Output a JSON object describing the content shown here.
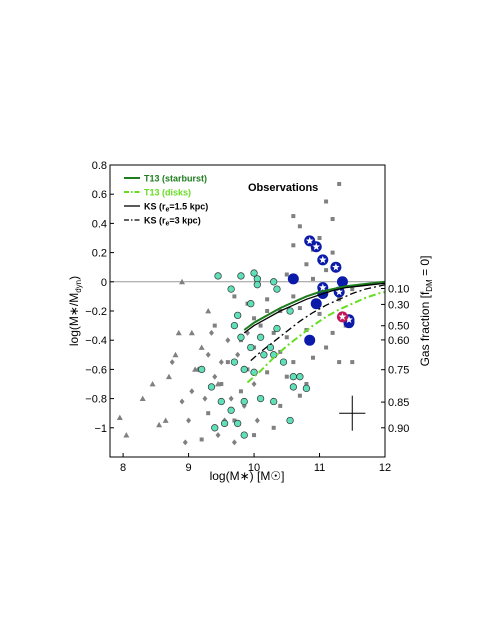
{
  "chart_data": {
    "type": "scatter",
    "title": "Observations",
    "xlabel": "log(M∗) [M☉]",
    "ylabel": "log(M∗/M",
    "ylabel_sub": "dyn",
    "ylabel_close": ")",
    "right_label": "Gas fraction [f",
    "right_label_sub": "DM",
    "right_label_tail": " = 0]",
    "xlim": [
      7.8,
      12
    ],
    "ylim": [
      -1.2,
      0.8
    ],
    "x_ticks": [
      8,
      9,
      10,
      11,
      12
    ],
    "y_ticks": [
      0.8,
      0.6,
      0.4,
      0.2,
      0,
      -0.2,
      -0.4,
      -0.6,
      -0.8,
      -1
    ],
    "y_tick_labels": [
      "0.8",
      "0.6",
      "0.4",
      "0.2",
      "0",
      "−0.2",
      "−0.4",
      "−0.6",
      "−0.8",
      "−1"
    ],
    "right_axis": [
      {
        "y": -0.046,
        "label": "0.10"
      },
      {
        "y": -0.155,
        "label": "0.30"
      },
      {
        "y": -0.301,
        "label": "0.50"
      },
      {
        "y": -0.398,
        "label": "0.60"
      },
      {
        "y": -0.602,
        "label": "0.75"
      },
      {
        "y": -0.824,
        "label": "0.85"
      },
      {
        "y": -1.0,
        "label": "0.90"
      }
    ],
    "grid": false,
    "reference_line": {
      "y": 0,
      "color": "#999999"
    },
    "legend": {
      "position": "top-left",
      "entries": [
        {
          "label": "T13 (starburst)",
          "style": "solid",
          "color": "#1e7d1e",
          "text_color": "#1e7d1e",
          "sub": ""
        },
        {
          "label": "T13 (disks)",
          "style": "dashdot",
          "color": "#66dd22",
          "text_color": "#66dd22",
          "sub": ""
        },
        {
          "label_pre": "KS (r",
          "sub": "e",
          "label_post": "=1.5 kpc)",
          "style": "solid",
          "color": "#000000",
          "text_color": "#000000"
        },
        {
          "label_pre": "KS (r",
          "sub": "e",
          "label_post": "=3 kpc)",
          "style": "dashdot",
          "color": "#000000",
          "text_color": "#000000"
        }
      ]
    },
    "series": [
      {
        "name": "T13 (starburst)",
        "kind": "curve",
        "color": "#1e7d1e",
        "style": "solid",
        "x": [
          9.85,
          10.0,
          10.2,
          10.4,
          10.6,
          10.8,
          11.0,
          11.2,
          11.4,
          11.6,
          11.8,
          12.0
        ],
        "y": [
          -0.33,
          -0.28,
          -0.23,
          -0.18,
          -0.14,
          -0.1,
          -0.07,
          -0.05,
          -0.03,
          -0.02,
          -0.01,
          0.0
        ]
      },
      {
        "name": "KS (re=1.5 kpc)",
        "kind": "curve",
        "color": "#000000",
        "style": "solid",
        "x": [
          9.85,
          10.0,
          10.2,
          10.4,
          10.6,
          10.8,
          11.0,
          11.2,
          11.4,
          11.6,
          11.8,
          12.0
        ],
        "y": [
          -0.35,
          -0.3,
          -0.25,
          -0.2,
          -0.16,
          -0.12,
          -0.09,
          -0.06,
          -0.04,
          -0.03,
          -0.02,
          -0.01
        ]
      },
      {
        "name": "KS (re=3 kpc)",
        "kind": "curve",
        "color": "#000000",
        "style": "dashdot",
        "x": [
          9.95,
          10.1,
          10.3,
          10.5,
          10.7,
          10.9,
          11.1,
          11.3,
          11.5,
          11.7,
          11.9,
          12.0
        ],
        "y": [
          -0.54,
          -0.48,
          -0.41,
          -0.34,
          -0.27,
          -0.21,
          -0.16,
          -0.12,
          -0.08,
          -0.05,
          -0.03,
          -0.02
        ]
      },
      {
        "name": "T13 (disks)",
        "kind": "curve",
        "color": "#66dd22",
        "style": "dashdot",
        "x": [
          9.9,
          10.1,
          10.3,
          10.5,
          10.7,
          10.9,
          11.1,
          11.3,
          11.5,
          11.7,
          11.9,
          12.0
        ],
        "y": [
          -0.69,
          -0.61,
          -0.52,
          -0.44,
          -0.37,
          -0.3,
          -0.24,
          -0.19,
          -0.15,
          -0.11,
          -0.08,
          -0.07
        ]
      },
      {
        "name": "gray squares",
        "kind": "marker",
        "marker": "square",
        "color": "#808080",
        "points": [
          [
            11.3,
            0.67
          ],
          [
            11.1,
            0.55
          ],
          [
            10.6,
            0.45
          ],
          [
            11.2,
            0.43
          ],
          [
            10.7,
            0.38
          ],
          [
            11.0,
            0.3
          ],
          [
            10.6,
            0.25
          ],
          [
            10.9,
            0.22
          ],
          [
            11.2,
            0.2
          ],
          [
            10.8,
            0.12
          ],
          [
            11.1,
            0.08
          ],
          [
            10.5,
            0.05
          ],
          [
            10.9,
            0.02
          ],
          [
            9.7,
            -0.1
          ],
          [
            9.9,
            -0.15
          ],
          [
            10.2,
            -0.12
          ],
          [
            10.4,
            -0.2
          ],
          [
            10.7,
            -0.18
          ],
          [
            11.0,
            -0.22
          ],
          [
            11.3,
            -0.12
          ],
          [
            11.5,
            -0.05
          ],
          [
            10.1,
            -0.3
          ],
          [
            10.3,
            -0.35
          ],
          [
            10.5,
            -0.38
          ],
          [
            10.8,
            -0.33
          ],
          [
            11.2,
            -0.35
          ],
          [
            9.8,
            -0.4
          ],
          [
            10.0,
            -0.45
          ],
          [
            10.4,
            -0.48
          ],
          [
            10.6,
            -0.55
          ],
          [
            10.9,
            -0.52
          ],
          [
            11.1,
            -0.45
          ],
          [
            9.6,
            -0.55
          ],
          [
            9.9,
            -0.6
          ],
          [
            10.2,
            -0.62
          ],
          [
            10.5,
            -0.65
          ],
          [
            10.8,
            -0.7
          ],
          [
            11.3,
            -0.55
          ],
          [
            9.5,
            -0.7
          ],
          [
            9.8,
            -0.75
          ],
          [
            10.1,
            -0.8
          ],
          [
            10.4,
            -0.85
          ],
          [
            10.7,
            -0.78
          ],
          [
            9.3,
            -0.9
          ],
          [
            9.7,
            -0.95
          ],
          [
            10.0,
            -1.05
          ],
          [
            10.3,
            -1.0
          ],
          [
            9.2,
            -1.08
          ],
          [
            11.4,
            -0.3
          ],
          [
            10.2,
            -0.2
          ],
          [
            10.6,
            -0.1
          ],
          [
            9.4,
            -0.3
          ],
          [
            10.0,
            -0.25
          ],
          [
            11.5,
            -0.55
          ]
        ]
      },
      {
        "name": "gray triangles",
        "kind": "marker",
        "marker": "triangle",
        "color": "#808080",
        "points": [
          [
            7.95,
            -0.93
          ],
          [
            8.05,
            -1.05
          ],
          [
            8.3,
            -0.8
          ],
          [
            8.45,
            -0.7
          ],
          [
            8.55,
            -0.98
          ],
          [
            8.65,
            -0.95
          ],
          [
            8.8,
            -0.5
          ],
          [
            8.85,
            -0.35
          ],
          [
            8.9,
            0.0
          ],
          [
            9.05,
            -0.35
          ],
          [
            9.1,
            -0.6
          ],
          [
            9.2,
            -0.45
          ],
          [
            9.3,
            -0.2
          ],
          [
            9.45,
            -0.7
          ],
          [
            8.7,
            -0.65
          ]
        ]
      },
      {
        "name": "gray diamonds",
        "kind": "marker",
        "marker": "diamond",
        "color": "#808080",
        "points": [
          [
            8.75,
            -0.55
          ],
          [
            8.9,
            -0.82
          ],
          [
            9.0,
            -0.95
          ],
          [
            9.05,
            -0.75
          ],
          [
            9.15,
            -0.6
          ],
          [
            9.25,
            -0.8
          ],
          [
            9.3,
            -0.5
          ],
          [
            9.4,
            -0.65
          ],
          [
            9.5,
            -0.55
          ],
          [
            9.55,
            -0.95
          ],
          [
            9.6,
            -0.4
          ],
          [
            9.65,
            -0.8
          ],
          [
            9.7,
            -1.1
          ],
          [
            9.75,
            -0.5
          ],
          [
            9.85,
            -0.85
          ],
          [
            9.9,
            -0.35
          ],
          [
            10.0,
            -0.7
          ],
          [
            10.05,
            -0.95
          ],
          [
            8.95,
            -1.1
          ],
          [
            9.35,
            -0.35
          ],
          [
            9.45,
            -1.05
          ]
        ]
      },
      {
        "name": "cyan circles",
        "kind": "marker",
        "marker": "circle",
        "color": "#5fe0b8",
        "stroke": "#333333",
        "points": [
          [
            9.45,
            0.04
          ],
          [
            9.8,
            0.04
          ],
          [
            10.0,
            0.06
          ],
          [
            10.05,
            0.02
          ],
          [
            10.3,
            0.0
          ],
          [
            10.35,
            -0.05
          ],
          [
            9.7,
            -0.3
          ],
          [
            9.8,
            -0.38
          ],
          [
            9.95,
            -0.45
          ],
          [
            10.1,
            -0.38
          ],
          [
            10.25,
            -0.45
          ],
          [
            9.7,
            -0.55
          ],
          [
            9.85,
            -0.6
          ],
          [
            10.0,
            -0.62
          ],
          [
            10.15,
            -0.5
          ],
          [
            10.3,
            -0.5
          ],
          [
            10.45,
            -0.55
          ],
          [
            10.6,
            -0.65
          ],
          [
            10.7,
            -0.65
          ],
          [
            10.8,
            -0.73
          ],
          [
            9.2,
            -0.6
          ],
          [
            9.35,
            -0.72
          ],
          [
            9.5,
            -0.82
          ],
          [
            9.65,
            -0.88
          ],
          [
            9.85,
            -0.82
          ],
          [
            10.1,
            -0.8
          ],
          [
            10.3,
            -0.82
          ],
          [
            10.6,
            -0.72
          ],
          [
            9.4,
            -1.0
          ],
          [
            9.55,
            -0.97
          ],
          [
            9.75,
            -0.97
          ],
          [
            9.85,
            -1.05
          ],
          [
            10.55,
            -0.95
          ],
          [
            10.35,
            -0.32
          ],
          [
            10.55,
            -0.2
          ],
          [
            9.95,
            -0.15
          ],
          [
            10.05,
            -0.02
          ],
          [
            9.75,
            -0.23
          ],
          [
            9.65,
            -0.05
          ]
        ]
      },
      {
        "name": "blue circles",
        "kind": "marker",
        "marker": "bigcircle",
        "color": "#0b1aa8",
        "points": [
          [
            10.6,
            0.02
          ],
          [
            10.85,
            -0.4
          ],
          [
            10.95,
            -0.15
          ],
          [
            11.05,
            -0.08
          ],
          [
            11.45,
            -0.28
          ],
          [
            11.35,
            0.0
          ]
        ]
      },
      {
        "name": "blue starred circles",
        "kind": "marker",
        "marker": "starcircle",
        "color": "#0b1aa8",
        "points": [
          [
            10.85,
            0.28
          ],
          [
            10.95,
            0.24
          ],
          [
            11.05,
            0.15
          ],
          [
            11.25,
            0.1
          ],
          [
            11.05,
            -0.04
          ],
          [
            11.3,
            -0.07
          ],
          [
            11.45,
            -0.26
          ]
        ]
      },
      {
        "name": "magenta starred circle",
        "kind": "marker",
        "marker": "starcircle",
        "color": "#c2185b",
        "points": [
          [
            11.35,
            -0.24
          ]
        ]
      }
    ],
    "error_bar": {
      "x": 11.5,
      "y": -0.9,
      "xerr": 0.2,
      "yerr": 0.12
    }
  }
}
